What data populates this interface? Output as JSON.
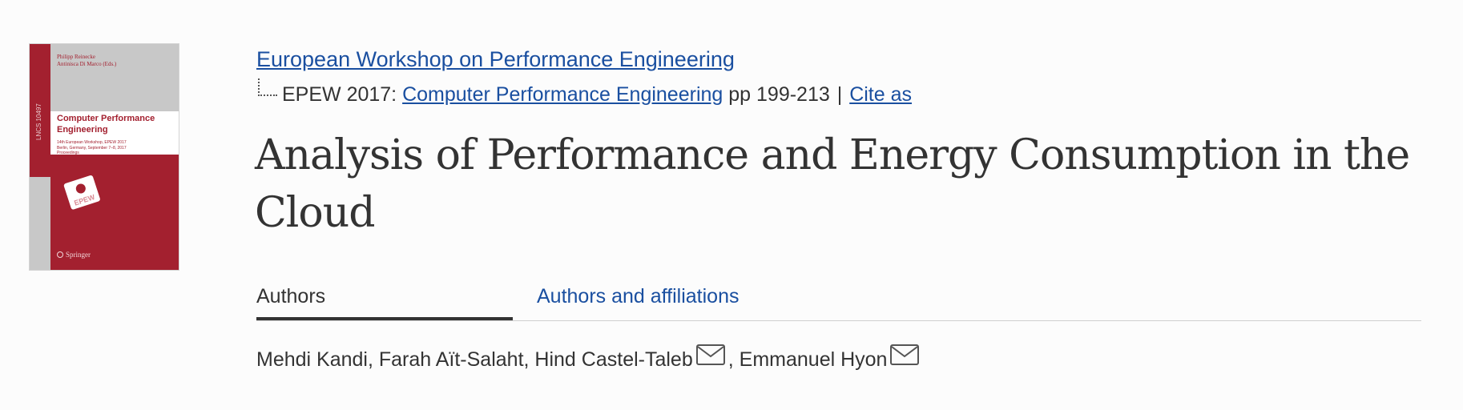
{
  "cover": {
    "editors": "Philipp Reinecke\nAntinisca Di Marco (Eds.)",
    "series_tag": "LNCS 10497",
    "title": "Computer Performance Engineering",
    "subtitle": "14th European Workshop, EPEW 2017\nBerlin, Germany, September 7–8, 2017\nProceedings",
    "logo_text": "EPEW",
    "publisher": "Springer"
  },
  "header": {
    "series_link": "European Workshop on Performance Engineering",
    "conf_prefix": "EPEW 2017:",
    "book_link": "Computer Performance Engineering",
    "pages": "pp 199-213",
    "separator": "|",
    "cite_link": "Cite as"
  },
  "paper": {
    "title": "Analysis of Performance and Energy Consumption in the Cloud"
  },
  "tabs": {
    "authors": "Authors",
    "affiliations": "Authors and affiliations"
  },
  "authors": {
    "a1": "Mehdi Kandi, Farah Aït-Salaht,",
    "a2": "Hind Castel-Taleb",
    "sep": ",",
    "a3": "Emmanuel Hyon"
  },
  "colors": {
    "link": "#1a4fa0",
    "cover_red": "#a3202f",
    "text": "#333333"
  }
}
